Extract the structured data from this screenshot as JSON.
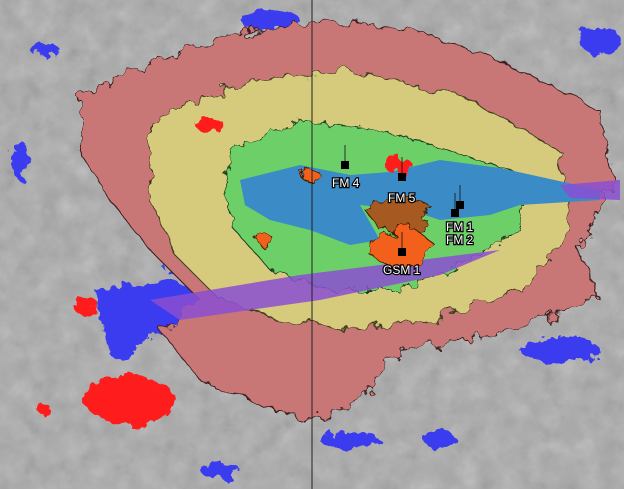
{
  "map": {
    "colors": {
      "terrain": "#a9a9a9",
      "zone_outer": "#c87676",
      "zone_mid": "#d6cb7c",
      "zone_inner": "#6ccf68",
      "lake": "#3a8bc6",
      "zone_core_orange": "#f2611e",
      "zone_core_brown": "#a65a22",
      "red_patches": "#ff1c1c",
      "water": "#3a3af0",
      "purple": "#8b4fd2"
    },
    "sites": [
      {
        "name": "FM 4",
        "icon": "square-marker"
      },
      {
        "name": "FM 5",
        "icon": "square-marker"
      },
      {
        "name": "FM 1",
        "icon": "square-marker"
      },
      {
        "name": "FM 2",
        "icon": "square-marker"
      },
      {
        "name": "GSM 1",
        "icon": "square-marker"
      }
    ]
  }
}
